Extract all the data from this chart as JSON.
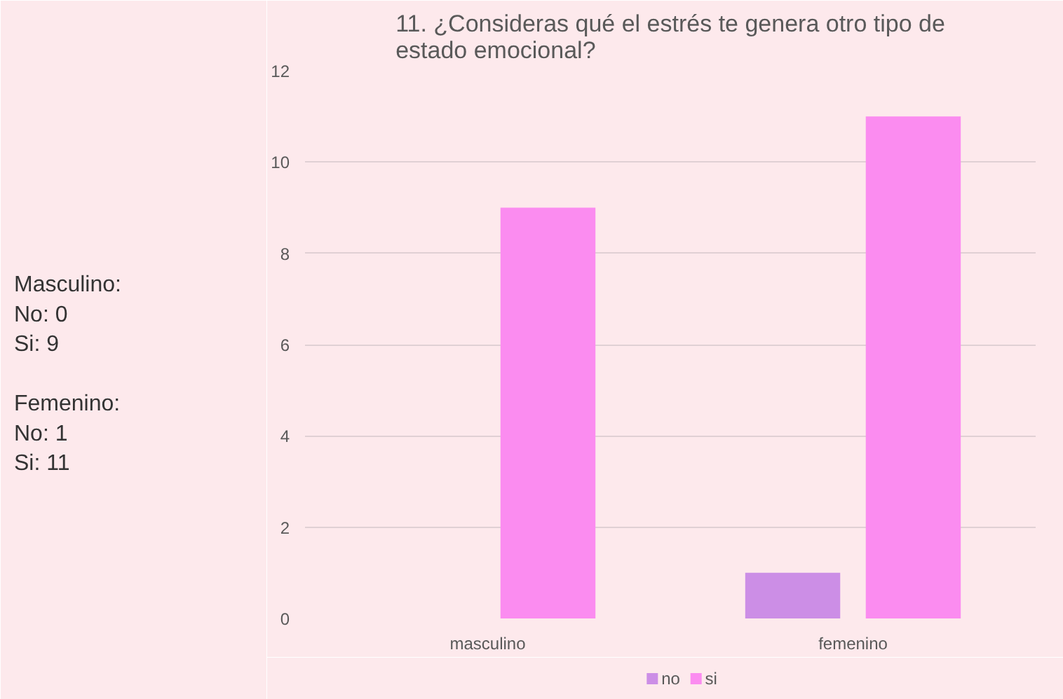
{
  "chart_data": {
    "type": "bar",
    "title": "11. ¿Consideras qué el estrés te genera otro tipo de\nestado emocional?",
    "categories": [
      "masculino",
      "femenino"
    ],
    "series": [
      {
        "name": "no",
        "color": "#cc8ee6",
        "values": [
          0,
          1
        ]
      },
      {
        "name": "si",
        "color": "#fb8cf0",
        "values": [
          9,
          11
        ]
      }
    ],
    "ylim": [
      0,
      12
    ],
    "yticks": [
      0,
      2,
      4,
      6,
      8,
      10,
      12
    ],
    "grid": "y",
    "legend": "bottom",
    "annotations": [
      "Masculino:\nNo: 0\nSi: 9\n\nFemenino:\nNo: 1\nSi: 11"
    ]
  }
}
